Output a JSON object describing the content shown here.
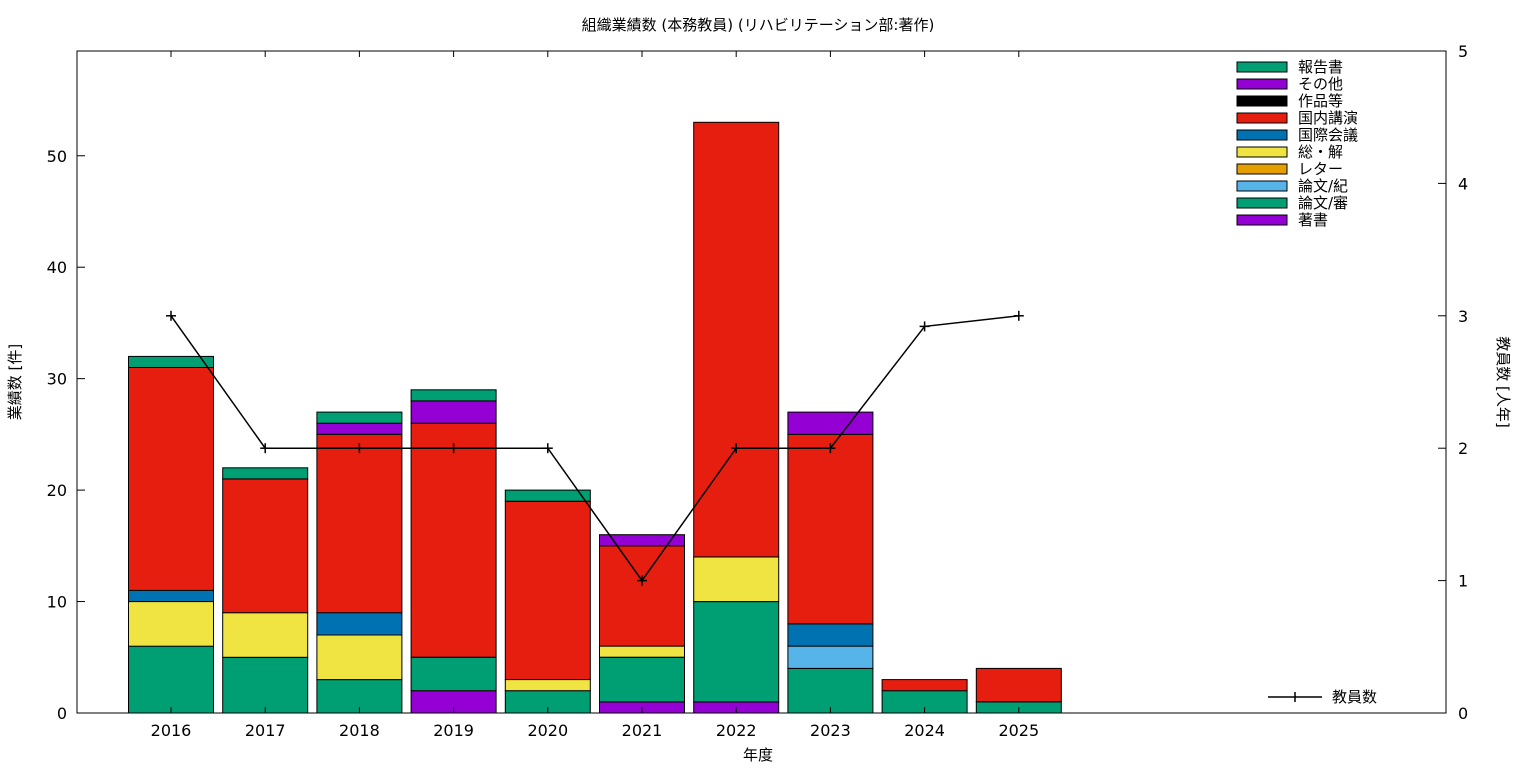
{
  "chart_data": {
    "type": "bar",
    "stacked": true,
    "title": "組織業績数 (本務教員) (リハビリテーション部:著作)",
    "xlabel": "年度",
    "ylabel": "業績数 [件]",
    "y2label": "教員数 [人年]",
    "categories": [
      "2016",
      "2017",
      "2018",
      "2019",
      "2020",
      "2021",
      "2022",
      "2023",
      "2024",
      "2025"
    ],
    "ylim": [
      0,
      59.4
    ],
    "y2lim": [
      0,
      5
    ],
    "yticks": [
      0,
      10,
      20,
      30,
      40,
      50
    ],
    "y2ticks": [
      0,
      1,
      2,
      3,
      4,
      5
    ],
    "grid": false,
    "legend_position": "top-right",
    "series": [
      {
        "name": "著書",
        "color": "#9400d3",
        "values": [
          0,
          0,
          0,
          2,
          0,
          1,
          1,
          0,
          0,
          0
        ]
      },
      {
        "name": "論文/審",
        "color": "#009e73",
        "values": [
          6,
          5,
          3,
          3,
          2,
          4,
          9,
          4,
          2,
          1
        ]
      },
      {
        "name": "論文/紀",
        "color": "#56b4e9",
        "values": [
          0,
          0,
          0,
          0,
          0,
          0,
          0,
          2,
          0,
          0
        ]
      },
      {
        "name": "レター",
        "color": "#e69f00",
        "values": [
          0,
          0,
          0,
          0,
          0,
          0,
          0,
          0,
          0,
          0
        ]
      },
      {
        "name": "総・解",
        "color": "#f0e442",
        "values": [
          4,
          4,
          4,
          0,
          1,
          1,
          4,
          0,
          0,
          0
        ]
      },
      {
        "name": "国際会議",
        "color": "#0072b2",
        "values": [
          1,
          0,
          2,
          0,
          0,
          0,
          0,
          2,
          0,
          0
        ]
      },
      {
        "name": "国内講演",
        "color": "#e51e10",
        "values": [
          20,
          12,
          16,
          21,
          16,
          9,
          39,
          17,
          1,
          3
        ]
      },
      {
        "name": "作品等",
        "color": "#000000",
        "values": [
          0,
          0,
          0,
          0,
          0,
          0,
          0,
          0,
          0,
          0
        ]
      },
      {
        "name": "その他",
        "color": "#9400d3",
        "values": [
          0,
          0,
          1,
          2,
          0,
          1,
          0,
          2,
          0,
          0
        ]
      },
      {
        "name": "報告書",
        "color": "#009e73",
        "values": [
          1,
          1,
          1,
          1,
          1,
          0,
          0,
          0,
          0,
          0
        ]
      }
    ],
    "line_series": {
      "name": "教員数",
      "axis": "y2",
      "color": "#000000",
      "values": [
        3,
        2,
        2,
        2,
        2,
        1,
        2,
        2,
        2.92,
        3
      ]
    }
  }
}
